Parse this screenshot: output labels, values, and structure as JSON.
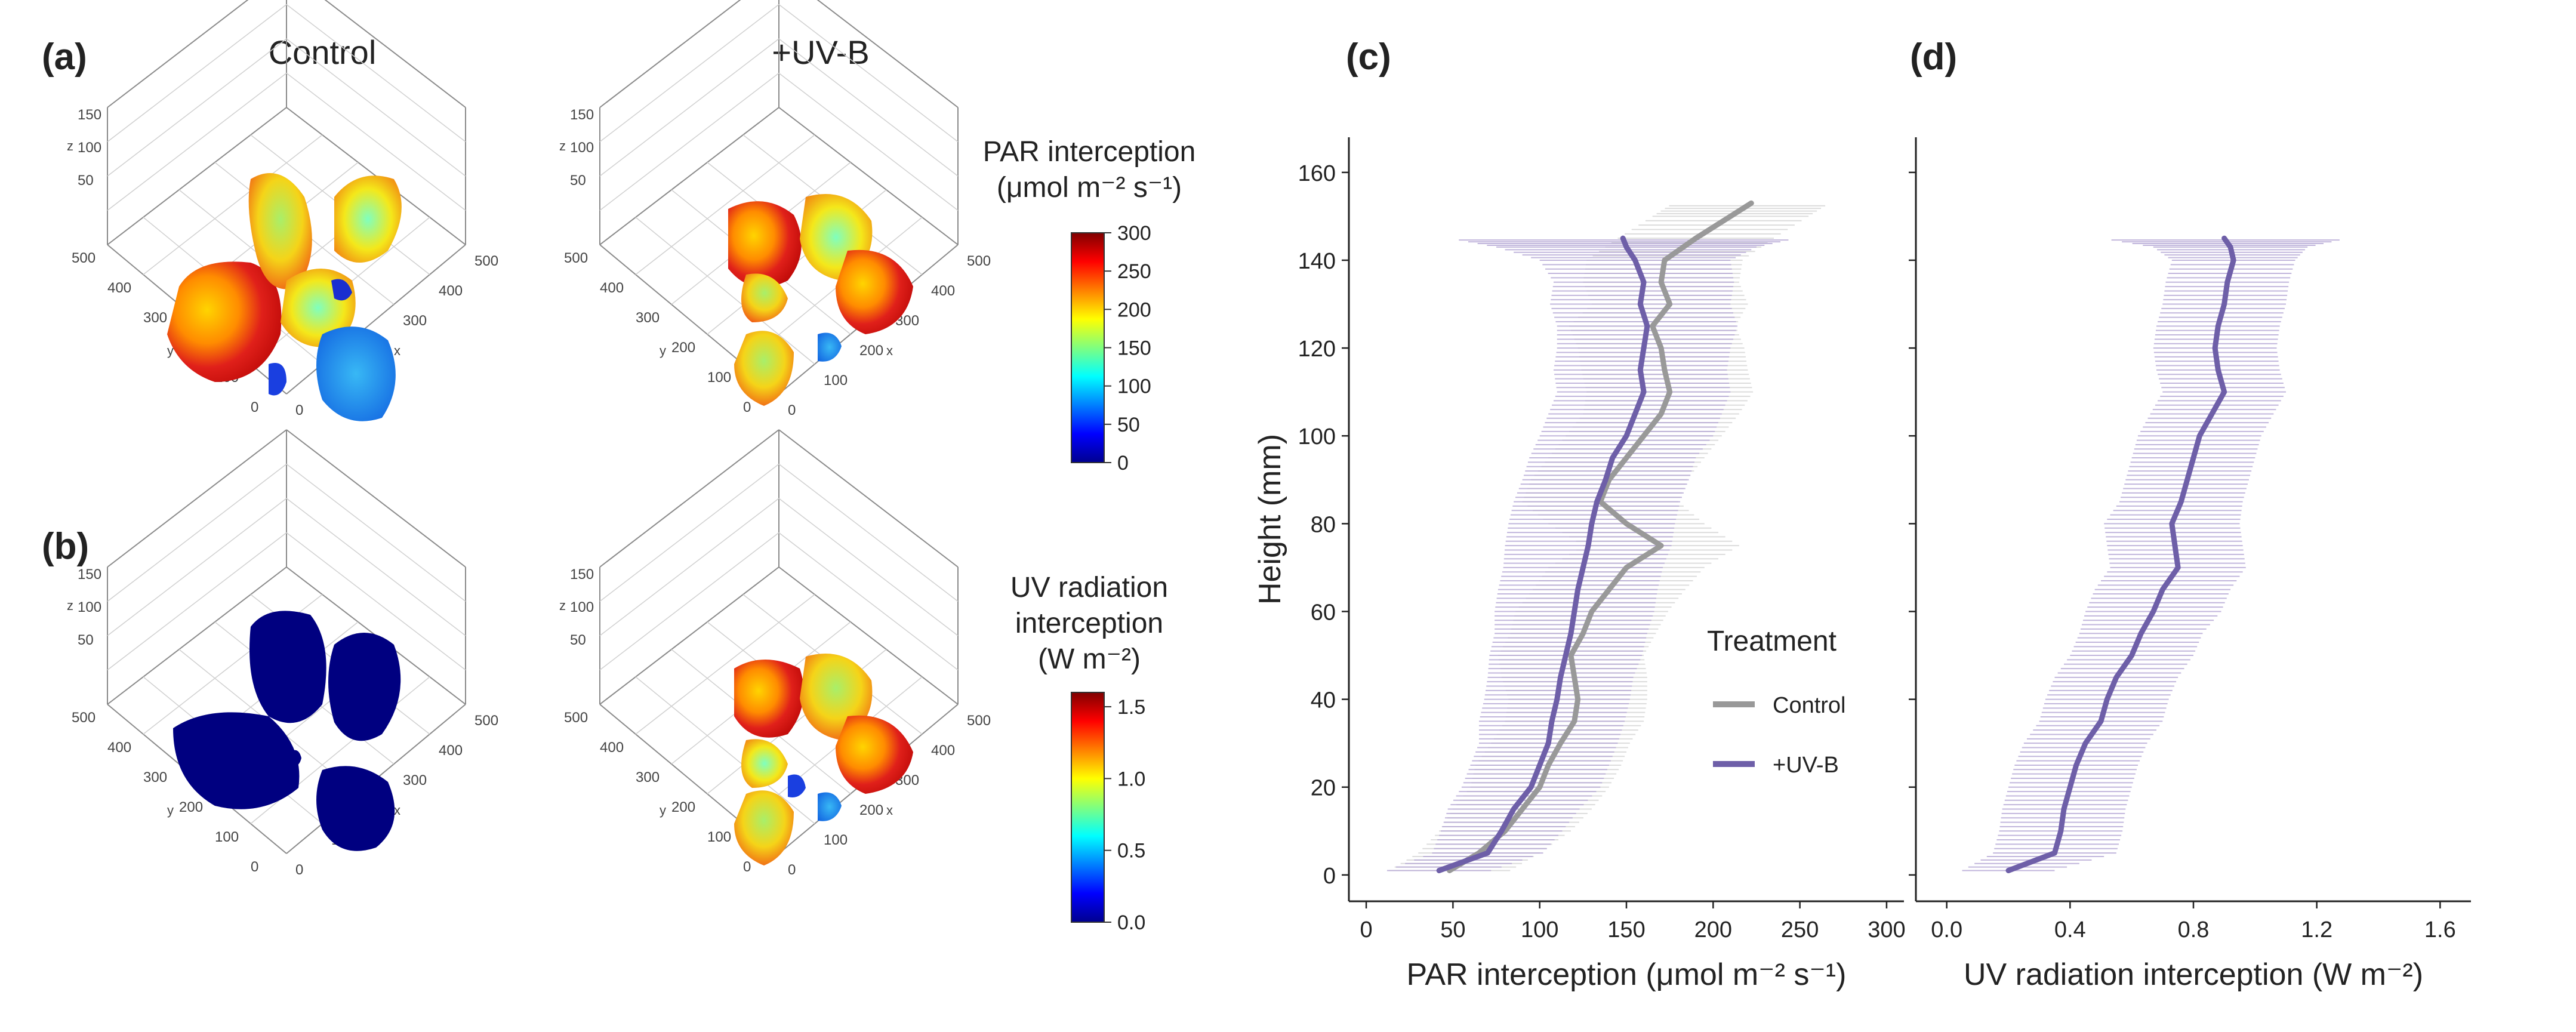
{
  "panels": {
    "a": "(a)",
    "b": "(b)",
    "c": "(c)",
    "d": "(d)"
  },
  "column_titles": {
    "control": "Control",
    "uvb": "+UV-B"
  },
  "axis3d": {
    "z_ticks": [
      "150",
      "100",
      "50"
    ],
    "xy_ticks": [
      "500",
      "400",
      "300",
      "200",
      "100",
      "0"
    ],
    "y_label": "y",
    "x_label": "x",
    "z_label": "z"
  },
  "colorbar_par": {
    "title_line1": "PAR interception",
    "title_line2": "(μmol m⁻² s⁻¹)",
    "ticks": [
      "300",
      "250",
      "200",
      "150",
      "100",
      "50",
      "0"
    ],
    "range": [
      0,
      300
    ]
  },
  "colorbar_uv": {
    "title_line1": "UV radiation",
    "title_line2": "interception",
    "title_line3": "(W m⁻²)",
    "ticks": [
      "1.5",
      "1.0",
      "0.5",
      "0.0"
    ],
    "range": [
      0,
      1.6
    ]
  },
  "colors": {
    "control": "#999999",
    "uvb": "#6e5fa8",
    "control_band": "#d6d6d6",
    "uvb_band": "#b7aad6"
  },
  "chart_data": [
    {
      "type": "line",
      "panel": "(c)",
      "xlabel": "PAR interception  (μmol m⁻² s⁻¹)",
      "ylabel": "Height (mm)",
      "xlim": [
        -10,
        310
      ],
      "ylim": [
        -6,
        168
      ],
      "xticks": [
        0,
        50,
        100,
        150,
        200,
        250,
        300
      ],
      "yticks": [
        0,
        20,
        40,
        60,
        80,
        100,
        120,
        140,
        160
      ],
      "legend_title": "Treatment",
      "legend_position": "bottom-right",
      "series": [
        {
          "name": "Control",
          "y": [
            1,
            5,
            10,
            15,
            20,
            25,
            30,
            35,
            40,
            45,
            50,
            55,
            60,
            65,
            70,
            75,
            80,
            85,
            90,
            95,
            100,
            105,
            110,
            115,
            120,
            125,
            130,
            135,
            140,
            145,
            150,
            153
          ],
          "x": [
            48,
            65,
            80,
            90,
            100,
            105,
            112,
            120,
            122,
            120,
            118,
            125,
            130,
            140,
            150,
            170,
            150,
            135,
            140,
            150,
            160,
            170,
            175,
            172,
            170,
            165,
            175,
            170,
            172,
            190,
            210,
            222
          ],
          "spread": [
            35,
            35,
            38,
            40,
            40,
            42,
            40,
            40,
            40,
            42,
            42,
            42,
            44,
            44,
            45,
            45,
            45,
            45,
            45,
            45,
            45,
            45,
            48,
            48,
            48,
            48,
            45,
            45,
            45,
            45,
            45,
            45
          ]
        },
        {
          "name": "+UV-B",
          "y": [
            1,
            5,
            10,
            15,
            20,
            25,
            30,
            35,
            40,
            45,
            50,
            55,
            60,
            65,
            70,
            75,
            80,
            85,
            90,
            95,
            100,
            105,
            110,
            115,
            120,
            125,
            130,
            135,
            140,
            143,
            145
          ],
          "x": [
            42,
            70,
            78,
            85,
            95,
            100,
            105,
            107,
            110,
            112,
            115,
            118,
            120,
            122,
            125,
            128,
            130,
            133,
            138,
            142,
            150,
            155,
            160,
            158,
            160,
            162,
            158,
            160,
            155,
            150,
            148
          ],
          "spread": [
            30,
            32,
            35,
            38,
            40,
            40,
            40,
            42,
            42,
            42,
            44,
            44,
            46,
            46,
            46,
            48,
            48,
            48,
            48,
            48,
            50,
            50,
            50,
            50,
            50,
            52,
            52,
            52,
            55,
            75,
            100
          ]
        }
      ]
    },
    {
      "type": "line",
      "panel": "(d)",
      "xlabel": "UV radiation interception  (W m⁻²)",
      "ylabel": "",
      "xlim": [
        -0.1,
        1.7
      ],
      "ylim": [
        -6,
        168
      ],
      "xticks": [
        0.0,
        0.4,
        0.8,
        1.2,
        1.6
      ],
      "xtick_labels": [
        "0.0",
        "0.4",
        "0.8",
        "1.2",
        "1.6"
      ],
      "series": [
        {
          "name": "+UV-B",
          "y": [
            1,
            5,
            10,
            15,
            20,
            25,
            30,
            35,
            40,
            45,
            50,
            55,
            60,
            65,
            70,
            75,
            80,
            85,
            90,
            95,
            100,
            105,
            110,
            115,
            120,
            125,
            130,
            135,
            140,
            143,
            145
          ],
          "x": [
            0.2,
            0.35,
            0.37,
            0.38,
            0.4,
            0.42,
            0.45,
            0.5,
            0.52,
            0.55,
            0.6,
            0.63,
            0.67,
            0.7,
            0.75,
            0.74,
            0.73,
            0.76,
            0.78,
            0.8,
            0.82,
            0.86,
            0.9,
            0.88,
            0.87,
            0.88,
            0.9,
            0.91,
            0.93,
            0.92,
            0.9
          ],
          "spread": [
            0.15,
            0.2,
            0.2,
            0.2,
            0.2,
            0.2,
            0.2,
            0.2,
            0.2,
            0.2,
            0.2,
            0.2,
            0.22,
            0.22,
            0.22,
            0.22,
            0.22,
            0.2,
            0.2,
            0.2,
            0.2,
            0.2,
            0.2,
            0.2,
            0.2,
            0.2,
            0.2,
            0.2,
            0.2,
            0.25,
            0.4
          ]
        }
      ]
    }
  ]
}
